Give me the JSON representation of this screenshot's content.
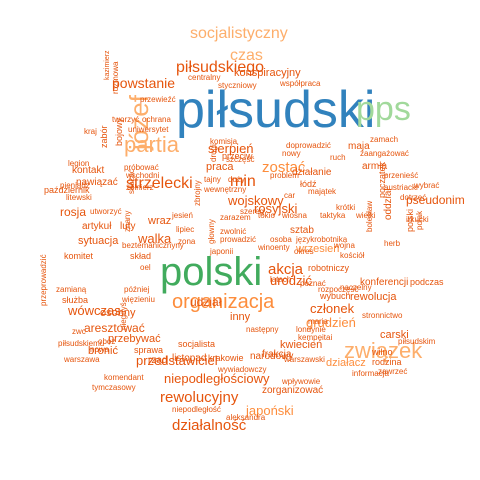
{
  "palette": {
    "blue": "#3182bd",
    "green": "#74c476",
    "orange": "#fd8d3c",
    "red": "#e6550d",
    "lightgreen": "#a1d99b",
    "lightorange": "#fdae6b",
    "teal": "#41ab5d"
  },
  "words": [
    {
      "text": "piłsudski",
      "color": "#3182bd",
      "weight": 1.0
    },
    {
      "text": "polski",
      "color": "#41ab5d",
      "weight": 0.6
    },
    {
      "text": "pps",
      "color": "#a1d99b",
      "weight": 0.55
    },
    {
      "text": "józef",
      "color": "#fdae6b",
      "weight": 0.5
    },
    {
      "text": "partia",
      "color": "#fdae6b",
      "weight": 0.45
    },
    {
      "text": "związek",
      "color": "#fdae6b",
      "weight": 0.42
    },
    {
      "text": "organizacja",
      "color": "#fd8d3c",
      "weight": 0.4
    },
    {
      "text": "socjalistyczny",
      "color": "#fdae6b",
      "weight": 0.35
    },
    {
      "text": "czas",
      "color": "#fdae6b",
      "weight": 0.32
    },
    {
      "text": "piłsudskiego",
      "color": "#e6550d",
      "weight": 0.3
    },
    {
      "text": "zostać",
      "color": "#fd8d3c",
      "weight": 0.28
    },
    {
      "text": "strzelecki",
      "color": "#e6550d",
      "weight": 0.27
    },
    {
      "text": "min",
      "color": "#e6550d",
      "weight": 0.26
    },
    {
      "text": "działalność",
      "color": "#e6550d",
      "weight": 0.25
    },
    {
      "text": "rewolucyjny",
      "color": "#e6550d",
      "weight": 0.25
    },
    {
      "text": "akcja",
      "color": "#e6550d",
      "weight": 0.24
    },
    {
      "text": "powstanie",
      "color": "#e6550d",
      "weight": 0.23
    },
    {
      "text": "niepodległościowy",
      "color": "#e6550d",
      "weight": 0.22
    },
    {
      "text": "japoński",
      "color": "#fd8d3c",
      "weight": 0.21
    },
    {
      "text": "przedstawiciel",
      "color": "#e6550d",
      "weight": 0.21
    },
    {
      "text": "walka",
      "color": "#e6550d",
      "weight": 0.2
    },
    {
      "text": "sierpień",
      "color": "#e6550d",
      "weight": 0.2
    },
    {
      "text": "urodzić",
      "color": "#e6550d",
      "weight": 0.19
    },
    {
      "text": "wojskowy",
      "color": "#e6550d",
      "weight": 0.19
    },
    {
      "text": "rosyjski",
      "color": "#e6550d",
      "weight": 0.18
    },
    {
      "text": "grudzień",
      "color": "#fd8d3c",
      "weight": 0.18
    },
    {
      "text": "członek",
      "color": "#e6550d",
      "weight": 0.18
    },
    {
      "text": "konspiracyjny",
      "color": "#e6550d",
      "weight": 0.17
    },
    {
      "text": "wrzesień",
      "color": "#fd8d3c",
      "weight": 0.17
    },
    {
      "text": "wówczas",
      "color": "#e6550d",
      "weight": 0.17
    },
    {
      "text": "aresztować",
      "color": "#e6550d",
      "weight": 0.17
    },
    {
      "text": "sytuacja",
      "color": "#e6550d",
      "weight": 0.16
    },
    {
      "text": "udział",
      "color": "#e6550d",
      "weight": 0.16
    },
    {
      "text": "działacz",
      "color": "#fd8d3c",
      "weight": 0.16
    },
    {
      "text": "rosja",
      "color": "#e6550d",
      "weight": 0.16
    },
    {
      "text": "inny",
      "color": "#e6550d",
      "weight": 0.15
    },
    {
      "text": "pseudonim",
      "color": "#e6550d",
      "weight": 0.15
    },
    {
      "text": "przebywać",
      "color": "#e6550d",
      "weight": 0.15
    },
    {
      "text": "osobny",
      "color": "#e6550d",
      "weight": 0.15
    },
    {
      "text": "rewolucja",
      "color": "#e6550d",
      "weight": 0.15
    },
    {
      "text": "kwiecień",
      "color": "#e6550d",
      "weight": 0.15
    },
    {
      "text": "działanie",
      "color": "#e6550d",
      "weight": 0.14
    },
    {
      "text": "narodowy",
      "color": "#e6550d",
      "weight": 0.14
    },
    {
      "text": "praca",
      "color": "#e6550d",
      "weight": 0.14
    },
    {
      "text": "zorganizować",
      "color": "#e6550d",
      "weight": 0.14
    },
    {
      "text": "frakcja",
      "color": "#e6550d",
      "weight": 0.14
    },
    {
      "text": "carski",
      "color": "#e6550d",
      "weight": 0.14
    },
    {
      "text": "sztab",
      "color": "#e6550d",
      "weight": 0.14
    },
    {
      "text": "przeciw",
      "color": "#e6550d",
      "weight": 0.13
    },
    {
      "text": "wraz",
      "color": "#e6550d",
      "weight": 0.13
    },
    {
      "text": "armia",
      "color": "#e6550d",
      "weight": 0.13
    },
    {
      "text": "maja",
      "color": "#e6550d",
      "weight": 0.13
    },
    {
      "text": "bronić",
      "color": "#e6550d",
      "weight": 0.13
    },
    {
      "text": "sprawa",
      "color": "#e6550d",
      "weight": 0.12
    },
    {
      "text": "rząd",
      "color": "#e6550d",
      "weight": 0.12
    },
    {
      "text": "listopad",
      "color": "#e6550d",
      "weight": 0.12
    },
    {
      "text": "krakowie",
      "color": "#e6550d",
      "weight": 0.12
    },
    {
      "text": "socjalista",
      "color": "#e6550d",
      "weight": 0.12
    },
    {
      "text": "wybuch",
      "color": "#e6550d",
      "weight": 0.12
    },
    {
      "text": "tworzyć",
      "color": "#e6550d",
      "weight": 0.12
    },
    {
      "text": "luty",
      "color": "#e6550d",
      "weight": 0.12
    },
    {
      "text": "artykuł",
      "color": "#e6550d",
      "weight": 0.12
    },
    {
      "text": "nawiązać",
      "color": "#e6550d",
      "weight": 0.12
    },
    {
      "text": "konferencji",
      "color": "#e6550d",
      "weight": 0.12
    },
    {
      "text": "podczas",
      "color": "#e6550d",
      "weight": 0.12
    },
    {
      "text": "robotniczy",
      "color": "#e6550d",
      "weight": 0.12
    },
    {
      "text": "oddział",
      "color": "#e6550d",
      "weight": 0.11
    },
    {
      "text": "początek",
      "color": "#e6550d",
      "weight": 0.11
    },
    {
      "text": "polski",
      "color": "#e6550d",
      "weight": 0.11
    },
    {
      "text": "łódź",
      "color": "#e6550d",
      "weight": 0.11
    },
    {
      "text": "wilno",
      "color": "#e6550d",
      "weight": 0.11
    },
    {
      "text": "rodzina",
      "color": "#e6550d",
      "weight": 0.11
    },
    {
      "text": "zawrzeć",
      "color": "#e6550d",
      "weight": 0.11
    },
    {
      "text": "piłsudskim",
      "color": "#e6550d",
      "weight": 0.1
    },
    {
      "text": "kontakt",
      "color": "#e6550d",
      "weight": 0.1
    },
    {
      "text": "skład",
      "color": "#e6550d",
      "weight": 0.1
    },
    {
      "text": "zarazem",
      "color": "#e6550d",
      "weight": 0.1
    },
    {
      "text": "bojowy",
      "color": "#e6550d",
      "weight": 0.1
    },
    {
      "text": "następny",
      "color": "#e6550d",
      "weight": 0.1
    },
    {
      "text": "warszawski",
      "color": "#e6550d",
      "weight": 0.1
    },
    {
      "text": "kempeitai",
      "color": "#e6550d",
      "weight": 0.1
    },
    {
      "text": "przeprowadzić",
      "color": "#e6550d",
      "weight": 0.1
    },
    {
      "text": "warszawa",
      "color": "#e6550d",
      "weight": 0.1
    },
    {
      "text": "służba",
      "color": "#e6550d",
      "weight": 0.1
    },
    {
      "text": "komitet",
      "color": "#e6550d",
      "weight": 0.1
    },
    {
      "text": "litewski",
      "color": "#e6550d",
      "weight": 0.1
    },
    {
      "text": "październik",
      "color": "#e6550d",
      "weight": 0.1
    },
    {
      "text": "zabór",
      "color": "#e6550d",
      "weight": 0.1
    },
    {
      "text": "przewieźć",
      "color": "#e6550d",
      "weight": 0.1
    },
    {
      "text": "ochrana",
      "color": "#e6550d",
      "weight": 0.1
    },
    {
      "text": "uniwersytet",
      "color": "#e6550d",
      "weight": 0.1
    },
    {
      "text": "kraj",
      "color": "#e6550d",
      "weight": 0.1
    },
    {
      "text": "styczniowy",
      "color": "#e6550d",
      "weight": 0.1
    },
    {
      "text": "współpraca",
      "color": "#e6550d",
      "weight": 0.1
    },
    {
      "text": "centralny",
      "color": "#e6550d",
      "weight": 0.09
    },
    {
      "text": "kazimierz",
      "color": "#e6550d",
      "weight": 0.09
    },
    {
      "text": "rozmowa",
      "color": "#e6550d",
      "weight": 0.09
    },
    {
      "text": "komisja",
      "color": "#e6550d",
      "weight": 0.09
    },
    {
      "text": "doprowadzić",
      "color": "#e6550d",
      "weight": 0.09
    },
    {
      "text": "zamach",
      "color": "#e6550d",
      "weight": 0.09
    },
    {
      "text": "ruch",
      "color": "#e6550d",
      "weight": 0.09
    },
    {
      "text": "zaangażować",
      "color": "#e6550d",
      "weight": 0.09
    },
    {
      "text": "przenieść",
      "color": "#e6550d",
      "weight": 0.09
    },
    {
      "text": "austriacki",
      "color": "#e6550d",
      "weight": 0.09
    },
    {
      "text": "wybrać",
      "color": "#e6550d",
      "weight": 0.09
    },
    {
      "text": "dotrzeć",
      "color": "#e6550d",
      "weight": 0.09
    },
    {
      "text": "irkucki",
      "color": "#e6550d",
      "weight": 0.09
    },
    {
      "text": "herb",
      "color": "#e6550d",
      "weight": 0.09
    },
    {
      "text": "stronnictwo",
      "color": "#e6550d",
      "weight": 0.09
    },
    {
      "text": "informacja",
      "color": "#e6550d",
      "weight": 0.09
    },
    {
      "text": "legion",
      "color": "#e6550d",
      "weight": 0.09
    },
    {
      "text": "pieniądz",
      "color": "#e6550d",
      "weight": 0.09
    },
    {
      "text": "utworzyć",
      "color": "#e6550d",
      "weight": 0.09
    },
    {
      "text": "skazać",
      "color": "#e6550d",
      "weight": 0.09
    },
    {
      "text": "wschodni",
      "color": "#e6550d",
      "weight": 0.09
    },
    {
      "text": "żołnierz",
      "color": "#e6550d",
      "weight": 0.09
    },
    {
      "text": "próbować",
      "color": "#e6550d",
      "weight": 0.09
    },
    {
      "text": "jesień",
      "color": "#e6550d",
      "weight": 0.09
    },
    {
      "text": "zwolnić",
      "color": "#e6550d",
      "weight": 0.09
    },
    {
      "text": "lipiec",
      "color": "#e6550d",
      "weight": 0.09
    },
    {
      "text": "beztemanicznyny",
      "color": "#e6550d",
      "weight": 0.09
    },
    {
      "text": "zona",
      "color": "#e6550d",
      "weight": 0.09
    },
    {
      "text": "japonii",
      "color": "#e6550d",
      "weight": 0.09
    },
    {
      "text": "winoenty",
      "color": "#e6550d",
      "weight": 0.09
    },
    {
      "text": "latach",
      "color": "#e6550d",
      "weight": 0.09
    },
    {
      "text": "poznać",
      "color": "#e6550d",
      "weight": 0.09
    },
    {
      "text": "okres",
      "color": "#e6550d",
      "weight": 0.09
    },
    {
      "text": "wojna",
      "color": "#e6550d",
      "weight": 0.09
    },
    {
      "text": "kościół",
      "color": "#e6550d",
      "weight": 0.09
    },
    {
      "text": "rozpoczęść",
      "color": "#e6550d",
      "weight": 0.09
    },
    {
      "text": "naczelny",
      "color": "#e6550d",
      "weight": 0.09
    },
    {
      "text": "więzieniu",
      "color": "#e6550d",
      "weight": 0.09
    },
    {
      "text": "później",
      "color": "#e6550d",
      "weight": 0.09
    },
    {
      "text": "zamianą",
      "color": "#e6550d",
      "weight": 0.09
    },
    {
      "text": "zwc",
      "color": "#e6550d",
      "weight": 0.09
    },
    {
      "text": "obóz",
      "color": "#e6550d",
      "weight": 0.09
    },
    {
      "text": "piłsudskiemu",
      "color": "#e6550d",
      "weight": 0.09
    },
    {
      "text": "nowa",
      "color": "#e6550d",
      "weight": 0.09
    },
    {
      "text": "niegdyś",
      "color": "#e6550d",
      "weight": 0.09
    },
    {
      "text": "znany",
      "color": "#e6550d",
      "weight": 0.09
    },
    {
      "text": "wywiadowczy",
      "color": "#e6550d",
      "weight": 0.09
    },
    {
      "text": "komendant",
      "color": "#e6550d",
      "weight": 0.09
    },
    {
      "text": "tymczasowy",
      "color": "#e6550d",
      "weight": 0.09
    },
    {
      "text": "wpływowie",
      "color": "#e6550d",
      "weight": 0.09
    },
    {
      "text": "niepodległość",
      "color": "#e6550d",
      "weight": 0.09
    },
    {
      "text": "aleksandra",
      "color": "#e6550d",
      "weight": 0.09
    },
    {
      "text": "tajny",
      "color": "#e6550d",
      "weight": 0.09
    },
    {
      "text": "duży",
      "color": "#e6550d",
      "weight": 0.09
    },
    {
      "text": "wewnętrzny",
      "color": "#e6550d",
      "weight": 0.09
    },
    {
      "text": "szereg",
      "color": "#e6550d",
      "weight": 0.09
    },
    {
      "text": "tokio",
      "color": "#e6550d",
      "weight": 0.09
    },
    {
      "text": "wiosna",
      "color": "#e6550d",
      "weight": 0.09
    },
    {
      "text": "taktyka",
      "color": "#e6550d",
      "weight": 0.09
    },
    {
      "text": "wielki",
      "color": "#e6550d",
      "weight": 0.09
    },
    {
      "text": "krótki",
      "color": "#e6550d",
      "weight": 0.09
    },
    {
      "text": "majątek",
      "color": "#e6550d",
      "weight": 0.09
    },
    {
      "text": "problem",
      "color": "#e6550d",
      "weight": 0.09
    },
    {
      "text": "car",
      "color": "#e6550d",
      "weight": 0.09
    },
    {
      "text": "nowy",
      "color": "#e6550d",
      "weight": 0.09
    },
    {
      "text": "zbrojny",
      "color": "#e6550d",
      "weight": 0.09
    },
    {
      "text": "drugi",
      "color": "#e6550d",
      "weight": 0.09
    },
    {
      "text": "szczęść",
      "color": "#e6550d",
      "weight": 0.09
    },
    {
      "text": "prowadzić",
      "color": "#e6550d",
      "weight": 0.09
    },
    {
      "text": "osoba",
      "color": "#e6550d",
      "weight": 0.09
    },
    {
      "text": "językrobotnika",
      "color": "#e6550d",
      "weight": 0.09
    },
    {
      "text": "bolesław",
      "color": "#e6550d",
      "weight": 0.09
    },
    {
      "text": "polak",
      "color": "#e6550d",
      "weight": 0.09
    },
    {
      "text": "maria",
      "color": "#e6550d",
      "weight": 0.09
    },
    {
      "text": "londynie",
      "color": "#e6550d",
      "weight": 0.09
    },
    {
      "text": "głowny",
      "color": "#e6550d",
      "weight": 0.09
    },
    {
      "text": "oel",
      "color": "#e6550d",
      "weight": 0.09
    }
  ]
}
